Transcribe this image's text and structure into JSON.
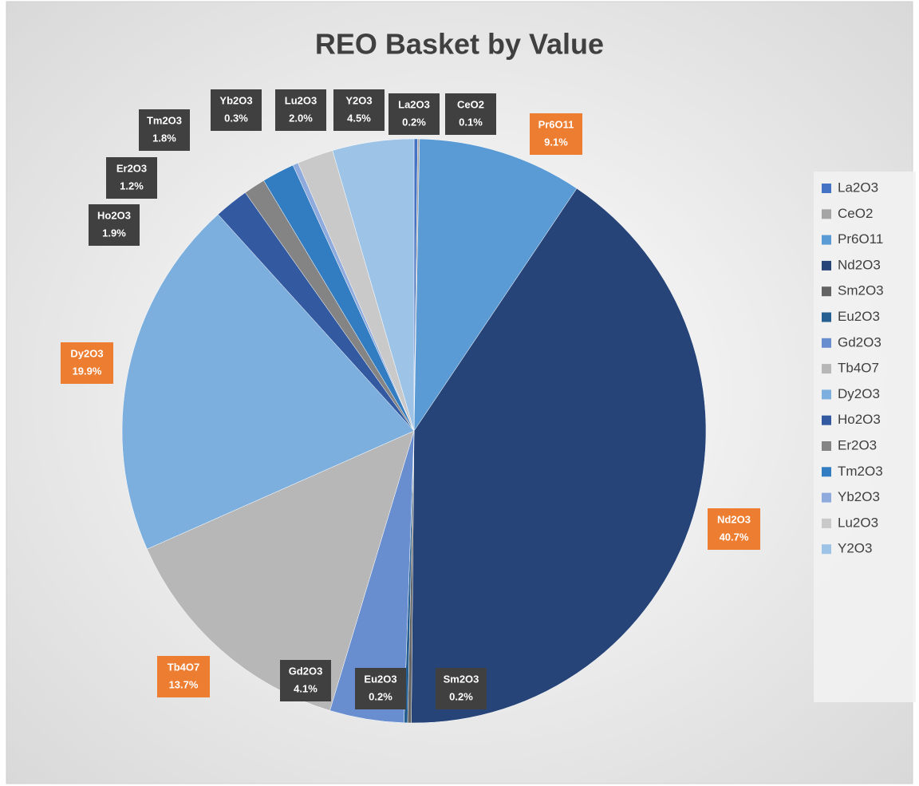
{
  "chart_data": {
    "type": "pie",
    "title": "REO Basket by Value",
    "categories": [
      "La2O3",
      "CeO2",
      "Pr6O11",
      "Nd2O3",
      "Sm2O3",
      "Eu2O3",
      "Gd2O3",
      "Tb4O7",
      "Dy2O3",
      "Ho2O3",
      "Er2O3",
      "Tm2O3",
      "Yb2O3",
      "Lu2O3",
      "Y2O3"
    ],
    "values": [
      0.2,
      0.1,
      9.1,
      40.7,
      0.2,
      0.2,
      4.1,
      13.7,
      19.9,
      1.9,
      1.2,
      1.8,
      0.3,
      2.0,
      4.5
    ],
    "value_labels": [
      "0.2%",
      "0.1%",
      "9.1%",
      "40.7%",
      "0.2%",
      "0.2%",
      "4.1%",
      "13.7%",
      "19.9%",
      "1.9%",
      "1.2%",
      "1.8%",
      "0.3%",
      "2.0%",
      "4.5%"
    ],
    "colors": [
      "#4472c4",
      "#a5a5a5",
      "#5b9bd5",
      "#264478",
      "#636363",
      "#255e91",
      "#698ed0",
      "#b7b7b7",
      "#7cafdd",
      "#335aa1",
      "#848484",
      "#327dc2",
      "#8faadc",
      "#c9c9c9",
      "#9dc3e6"
    ],
    "legend": "right"
  }
}
